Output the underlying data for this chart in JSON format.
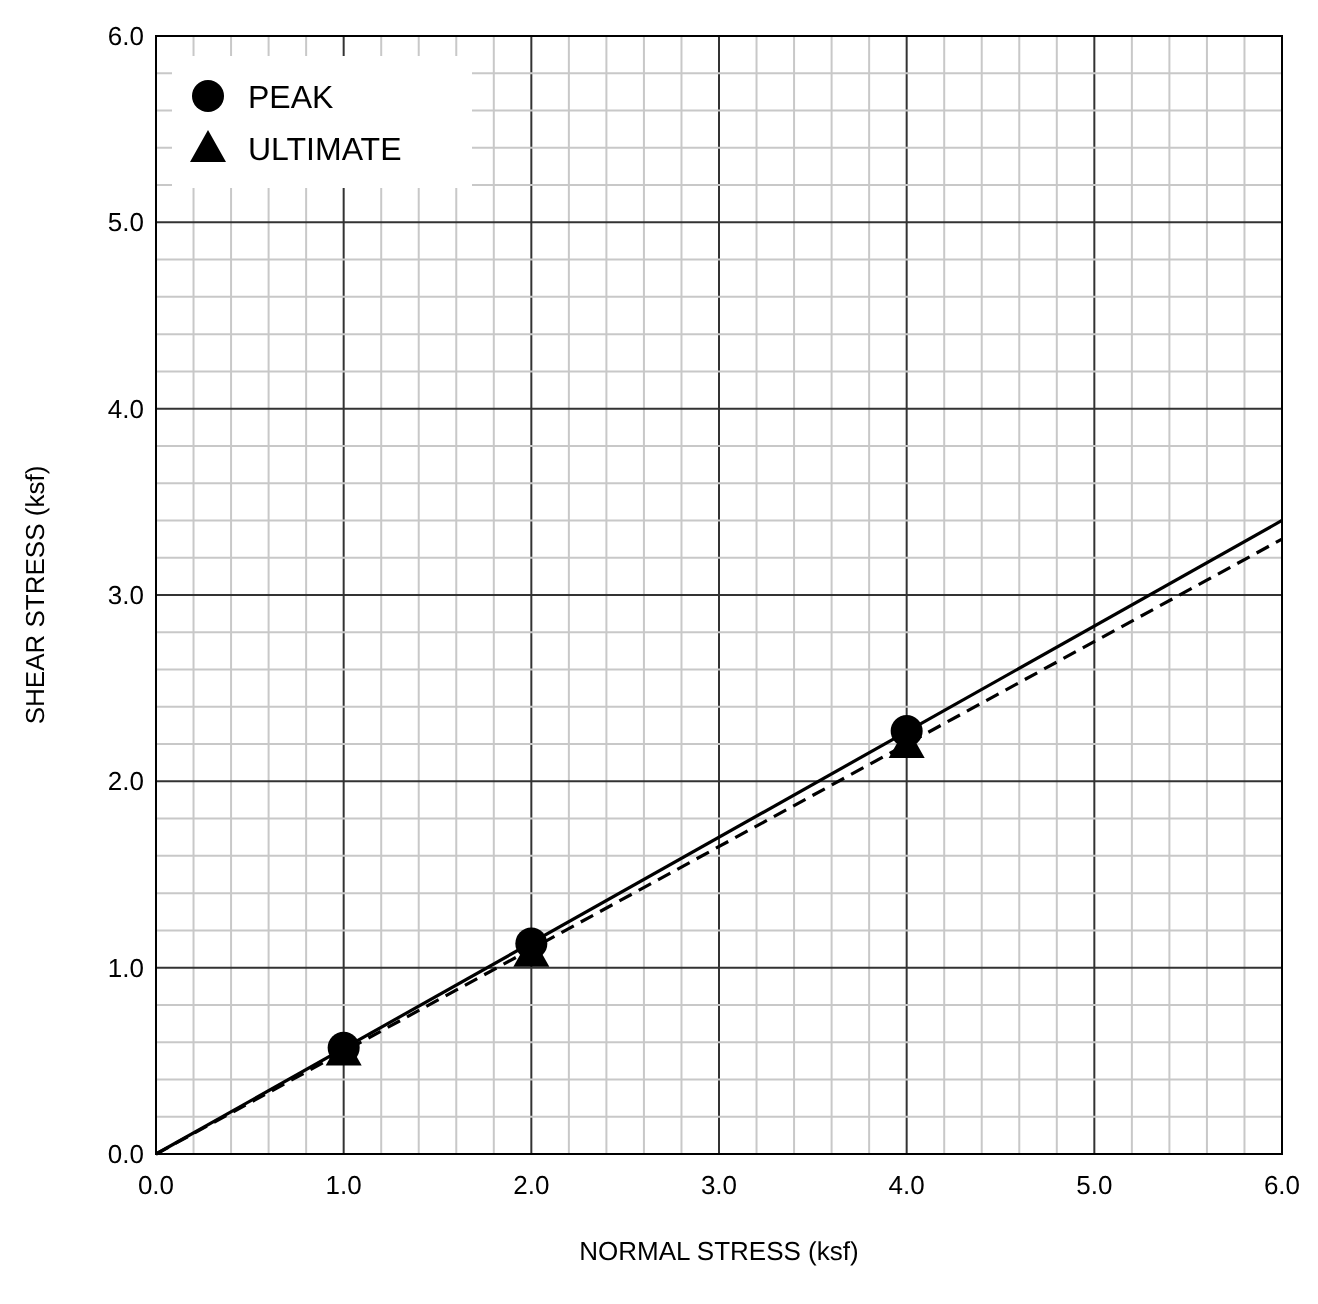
{
  "chart_data": {
    "type": "scatter",
    "xlabel": "NORMAL STRESS  (ksf)",
    "ylabel": "SHEAR STRESS  (ksf)",
    "series": [
      {
        "name": "PEAK",
        "marker": "circle",
        "color": "#000000",
        "x": [
          1,
          2,
          4
        ],
        "values": [
          0.57,
          1.13,
          2.27
        ]
      },
      {
        "name": "ULTIMATE",
        "marker": "triangle",
        "color": "#000000",
        "x": [
          1,
          2,
          4
        ],
        "values": [
          0.55,
          1.08,
          2.2
        ]
      },
      {
        "type": "line",
        "line_style": "solid",
        "marker": "none",
        "color": "#000000",
        "x": [
          0,
          6
        ],
        "values": [
          0,
          3.4
        ]
      },
      {
        "type": "line",
        "line_style": "dashed",
        "marker": "none",
        "color": "#000000",
        "x": [
          0,
          6
        ],
        "values": [
          0,
          3.3
        ]
      }
    ],
    "xlim": [
      0,
      6
    ],
    "ylim": [
      0,
      6
    ],
    "xticks": [
      {
        "value": 0,
        "label": "0.0"
      },
      {
        "value": 0.2,
        "label": null
      },
      {
        "value": 0.4,
        "label": null
      },
      {
        "value": 0.6,
        "label": null
      },
      {
        "value": 0.8,
        "label": null
      },
      {
        "value": 1,
        "label": "1.0"
      },
      {
        "value": 1.2,
        "label": null
      },
      {
        "value": 1.4,
        "label": null
      },
      {
        "value": 1.6,
        "label": null
      },
      {
        "value": 1.8,
        "label": null
      },
      {
        "value": 2,
        "label": "2.0"
      },
      {
        "value": 2.2,
        "label": null
      },
      {
        "value": 2.4,
        "label": null
      },
      {
        "value": 2.6,
        "label": null
      },
      {
        "value": 2.8,
        "label": null
      },
      {
        "value": 3,
        "label": "3.0"
      },
      {
        "value": 3.2,
        "label": null
      },
      {
        "value": 3.4,
        "label": null
      },
      {
        "value": 3.6,
        "label": null
      },
      {
        "value": 3.8,
        "label": null
      },
      {
        "value": 4,
        "label": "4.0"
      },
      {
        "value": 4.2,
        "label": null
      },
      {
        "value": 4.4,
        "label": null
      },
      {
        "value": 4.6,
        "label": null
      },
      {
        "value": 4.8,
        "label": null
      },
      {
        "value": 5,
        "label": "5.0"
      },
      {
        "value": 5.2,
        "label": null
      },
      {
        "value": 5.4,
        "label": null
      },
      {
        "value": 5.6,
        "label": null
      },
      {
        "value": 5.8,
        "label": null
      },
      {
        "value": 6,
        "label": "6.0"
      }
    ],
    "yticks": [
      {
        "value": 0,
        "label": "0.0"
      },
      {
        "value": 0.2,
        "label": null
      },
      {
        "value": 0.4,
        "label": null
      },
      {
        "value": 0.6,
        "label": null
      },
      {
        "value": 0.8,
        "label": null
      },
      {
        "value": 1,
        "label": "1.0"
      },
      {
        "value": 1.2,
        "label": null
      },
      {
        "value": 1.4,
        "label": null
      },
      {
        "value": 1.6,
        "label": null
      },
      {
        "value": 1.8,
        "label": null
      },
      {
        "value": 2,
        "label": "2.0"
      },
      {
        "value": 2.2,
        "label": null
      },
      {
        "value": 2.4,
        "label": null
      },
      {
        "value": 2.6,
        "label": null
      },
      {
        "value": 2.8,
        "label": null
      },
      {
        "value": 3,
        "label": "3.0"
      },
      {
        "value": 3.2,
        "label": null
      },
      {
        "value": 3.4,
        "label": null
      },
      {
        "value": 3.6,
        "label": null
      },
      {
        "value": 3.8,
        "label": null
      },
      {
        "value": 4,
        "label": "4.0"
      },
      {
        "value": 4.2,
        "label": null
      },
      {
        "value": 4.4,
        "label": null
      },
      {
        "value": 4.6,
        "label": null
      },
      {
        "value": 4.8,
        "label": null
      },
      {
        "value": 5,
        "label": "5.0"
      },
      {
        "value": 5.2,
        "label": null
      },
      {
        "value": 5.4,
        "label": null
      },
      {
        "value": 5.6,
        "label": null
      },
      {
        "value": 5.8,
        "label": null
      },
      {
        "value": 6,
        "label": "6.0"
      }
    ],
    "grid": true,
    "legend": "top left"
  }
}
